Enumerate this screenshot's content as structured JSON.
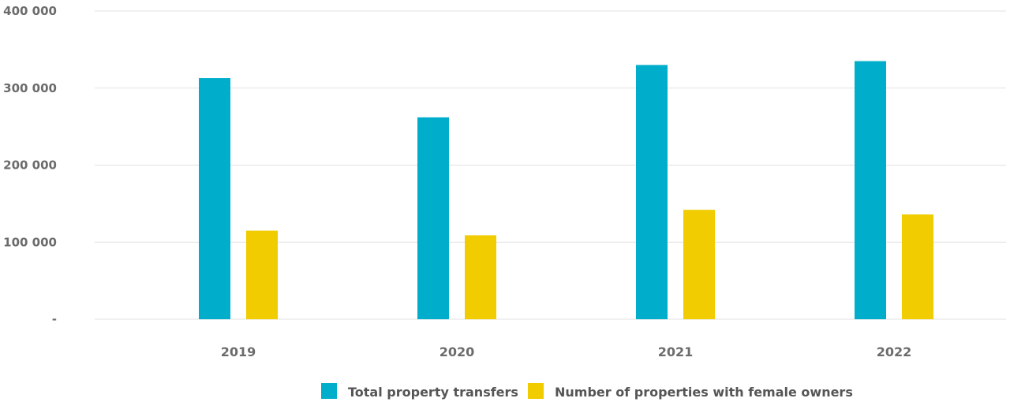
{
  "chart_data": {
    "type": "bar",
    "categories": [
      "2019",
      "2020",
      "2021",
      "2022"
    ],
    "series": [
      {
        "name": "Total property transfers",
        "color": "#00aecb",
        "values": [
          313000,
          262000,
          330000,
          335000
        ]
      },
      {
        "name": "Number of properties with female owners",
        "color": "#f0cc00",
        "values": [
          115000,
          109000,
          142000,
          136000
        ]
      }
    ],
    "y_ticks": [
      {
        "value": 0,
        "label": "-"
      },
      {
        "value": 100000,
        "label": "100 000"
      },
      {
        "value": 200000,
        "label": "200 000"
      },
      {
        "value": 300000,
        "label": "300 000"
      },
      {
        "value": 400000,
        "label": "400 000"
      }
    ],
    "ylim": [
      0,
      400000
    ],
    "grid": true,
    "legend_position": "bottom-center",
    "title": "",
    "xlabel": "",
    "ylabel": ""
  }
}
